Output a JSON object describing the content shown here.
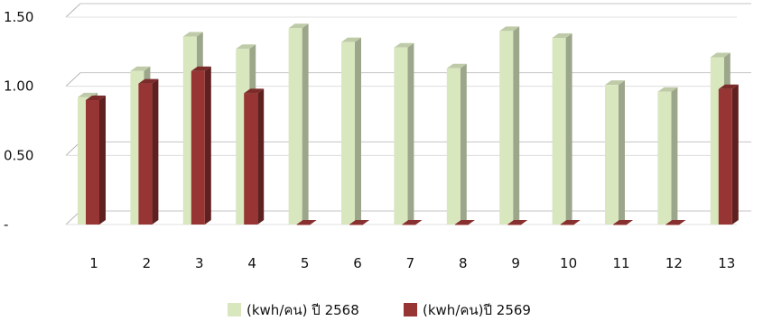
{
  "chart_data": {
    "type": "bar",
    "title": "",
    "xlabel": "",
    "ylabel": "",
    "categories": [
      "1",
      "2",
      "3",
      "4",
      "5",
      "6",
      "7",
      "8",
      "9",
      "10",
      "11",
      "12",
      "13"
    ],
    "y_tick_values": [
      0,
      0.5,
      1.0,
      1.5
    ],
    "y_tick_labels": [
      "-",
      "0.50",
      "1.00",
      "1.50"
    ],
    "ylim": [
      0,
      1.5
    ],
    "grid": true,
    "style": "3d-columns",
    "legend_position": "bottom",
    "series": [
      {
        "name": "(kwh/คน) ปี 2568",
        "color": "#d9e7bf",
        "values": [
          0.92,
          1.11,
          1.36,
          1.27,
          1.42,
          1.32,
          1.28,
          1.13,
          1.4,
          1.35,
          1.01,
          0.96,
          1.21
        ]
      },
      {
        "name": "(kwh/คน)ปี 2569",
        "color": "#973534",
        "values": [
          0.9,
          1.02,
          1.11,
          0.95,
          0,
          0,
          0,
          0,
          0,
          0,
          0,
          0,
          0.98
        ]
      }
    ]
  }
}
